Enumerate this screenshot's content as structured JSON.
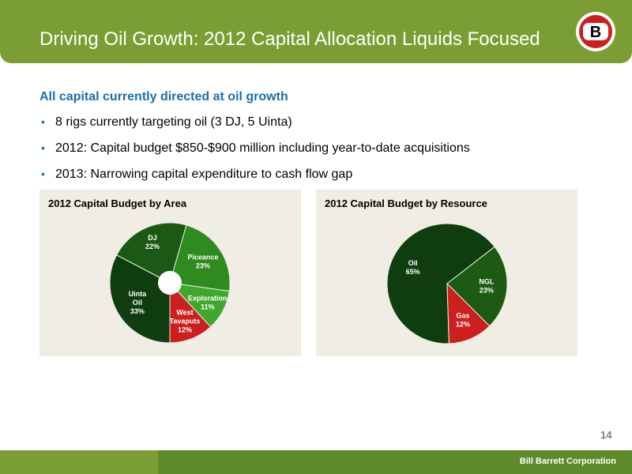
{
  "header": {
    "title": "Driving Oil Growth: 2012 Capital Allocation Liquids Focused",
    "logo_letter": "B"
  },
  "intro": "All capital currently directed at oil growth",
  "bullets": [
    "8 rigs currently targeting oil (3 DJ, 5 Uinta)",
    "2012: Capital budget $850-$900 million including year-to-date acquisitions",
    "2013: Narrowing capital expenditure to cash flow gap"
  ],
  "colors": {
    "header_green": "#7a9e33",
    "footer_dark_green": "#5e8a2a",
    "intro_blue": "#1a6eb0",
    "panel_bg": "#efede4"
  },
  "chart_data": [
    {
      "type": "pie",
      "donut_hole": true,
      "title": "2012 Capital Budget by Area",
      "slices": [
        {
          "label": "Uinta Oil",
          "lines": [
            "Uinta",
            "Oil"
          ],
          "value": 33,
          "pct": "33%",
          "color": "#0f3d0f"
        },
        {
          "label": "DJ",
          "lines": [
            "DJ"
          ],
          "value": 22,
          "pct": "22%",
          "color": "#1a5a14"
        },
        {
          "label": "Piceance",
          "lines": [
            "Piceance"
          ],
          "value": 23,
          "pct": "23%",
          "color": "#2f8a1f"
        },
        {
          "label": "Exploration",
          "lines": [
            "Exploration"
          ],
          "value": 11,
          "pct": "11%",
          "color": "#3fa82c"
        },
        {
          "label": "West Tavaputs",
          "lines": [
            "West",
            "Tavaputs"
          ],
          "value": 12,
          "pct": "12%",
          "color": "#cc1f1f"
        }
      ]
    },
    {
      "type": "pie",
      "donut_hole": false,
      "title": "2012 Capital Budget by Resource",
      "slices": [
        {
          "label": "Oil",
          "lines": [
            "Oil"
          ],
          "value": 65,
          "pct": "65%",
          "color": "#0f3d0f"
        },
        {
          "label": "NGL",
          "lines": [
            "NGL"
          ],
          "value": 23,
          "pct": "23%",
          "color": "#1d5a14"
        },
        {
          "label": "Gas",
          "lines": [
            "Gas"
          ],
          "value": 12,
          "pct": "12%",
          "color": "#cc1f1f"
        }
      ]
    }
  ],
  "footer": {
    "company": "Bill Barrett Corporation",
    "page_number": "14"
  }
}
